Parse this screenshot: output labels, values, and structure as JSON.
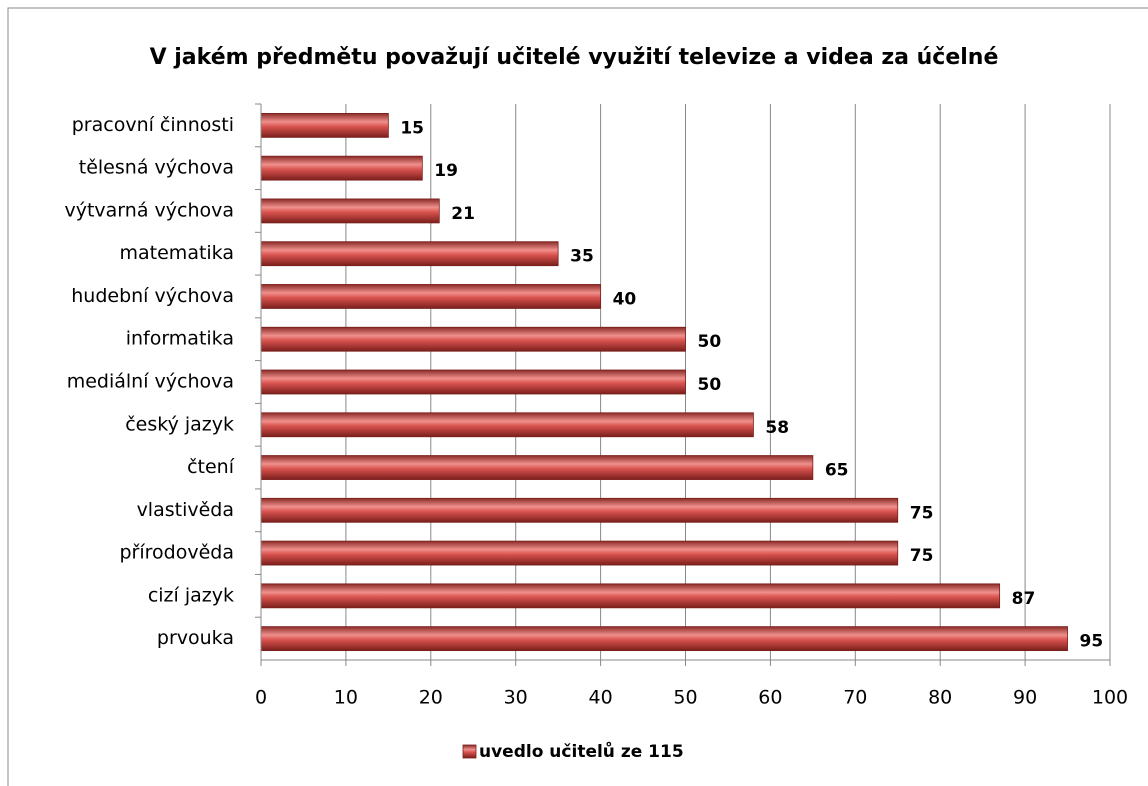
{
  "chart_data": {
    "type": "bar",
    "orientation": "horizontal",
    "title": "V jakém předmětu považují učitelé využití televize a videa za účelné",
    "categories": [
      "pracovní činnosti",
      "tělesná výchova",
      "výtvarná výchova",
      "matematika",
      "hudební výchova",
      "informatika",
      "mediální výchova",
      "český jazyk",
      "čtení",
      "vlastivěda",
      "přírodověda",
      "cizí jazyk",
      "prvouka"
    ],
    "series": [
      {
        "name": "uvedlo učitelů ze 115",
        "color": "#c0504d",
        "values": [
          15,
          19,
          21,
          35,
          40,
          50,
          50,
          58,
          65,
          75,
          75,
          87,
          95
        ]
      }
    ],
    "xlim": [
      0,
      100
    ],
    "xticks": [
      0,
      10,
      20,
      30,
      40,
      50,
      60,
      70,
      80,
      90,
      100
    ],
    "grid": true,
    "legend": "bottom"
  }
}
